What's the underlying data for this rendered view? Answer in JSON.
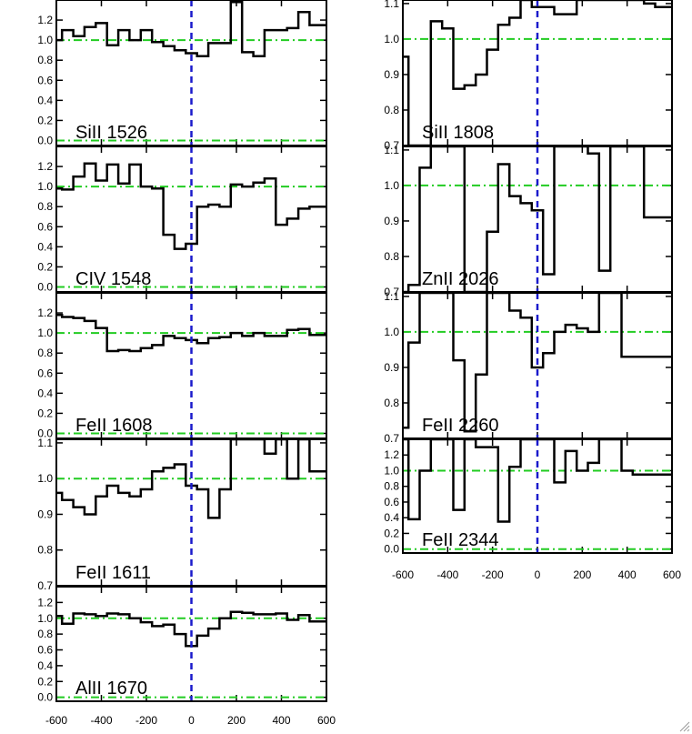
{
  "chart_data": [
    {
      "type": "line",
      "label": "SiII 1526",
      "xlim": [
        -600,
        600
      ],
      "ylim": [
        -0.05,
        1.4
      ],
      "yticks": [
        "0.0",
        "0.2",
        "0.4",
        "0.6",
        "0.8",
        "1.0",
        "1.2"
      ],
      "x": [
        -600,
        -550,
        -500,
        -450,
        -400,
        -350,
        -300,
        -250,
        -200,
        -150,
        -100,
        -50,
        0,
        50,
        100,
        150,
        200,
        250,
        300,
        350,
        400,
        450,
        500,
        550,
        600
      ],
      "y": [
        1.0,
        1.1,
        1.04,
        1.13,
        1.17,
        0.95,
        1.1,
        1.0,
        1.1,
        0.98,
        0.94,
        0.9,
        0.87,
        0.84,
        0.97,
        0.97,
        1.38,
        0.88,
        0.84,
        1.1,
        1.1,
        1.12,
        1.28,
        1.15,
        1.15
      ],
      "reference_y": 1.0
    },
    {
      "type": "line",
      "label": "CIV 1548",
      "xlim": [
        -600,
        600
      ],
      "ylim": [
        -0.05,
        1.4
      ],
      "yticks": [
        "0.0",
        "0.2",
        "0.4",
        "0.6",
        "0.8",
        "1.0",
        "1.2"
      ],
      "x": [
        -600,
        -550,
        -500,
        -450,
        -400,
        -350,
        -300,
        -250,
        -200,
        -150,
        -100,
        -50,
        0,
        50,
        100,
        150,
        200,
        250,
        300,
        350,
        400,
        450,
        500,
        550,
        600
      ],
      "y": [
        0.98,
        0.97,
        1.1,
        1.23,
        1.06,
        1.22,
        1.03,
        1.22,
        1.0,
        0.98,
        0.52,
        0.38,
        0.43,
        0.8,
        0.82,
        0.8,
        1.02,
        1.0,
        1.04,
        1.08,
        0.62,
        0.68,
        0.78,
        0.8,
        0.8
      ],
      "reference_y": 1.0
    },
    {
      "type": "line",
      "label": "FeII 1608",
      "xlim": [
        -600,
        600
      ],
      "ylim": [
        -0.05,
        1.4
      ],
      "yticks": [
        "0.0",
        "0.2",
        "0.4",
        "0.6",
        "0.8",
        "1.0",
        "1.2"
      ],
      "x": [
        -600,
        -550,
        -500,
        -450,
        -400,
        -350,
        -300,
        -250,
        -200,
        -150,
        -100,
        -50,
        0,
        50,
        100,
        150,
        200,
        250,
        300,
        350,
        400,
        450,
        500,
        550,
        600
      ],
      "y": [
        1.18,
        1.16,
        1.15,
        1.12,
        1.05,
        0.82,
        0.83,
        0.82,
        0.85,
        0.88,
        0.97,
        0.95,
        0.93,
        0.9,
        0.95,
        0.96,
        1.0,
        0.97,
        1.0,
        0.97,
        0.97,
        1.03,
        1.04,
        0.98,
        0.98
      ],
      "reference_y": 1.0
    },
    {
      "type": "line",
      "label": "FeII 1611",
      "xlim": [
        -600,
        600
      ],
      "ylim": [
        0.7,
        1.11
      ],
      "yticks": [
        "0.7",
        "0.8",
        "0.9",
        "1.0",
        "1.1"
      ],
      "x": [
        -600,
        -550,
        -500,
        -450,
        -400,
        -350,
        -300,
        -250,
        -200,
        -150,
        -100,
        -50,
        0,
        50,
        100,
        150,
        200,
        250,
        300,
        350,
        400,
        450,
        500,
        550,
        600
      ],
      "y": [
        0.96,
        0.94,
        0.92,
        0.9,
        0.95,
        0.98,
        0.96,
        0.95,
        0.97,
        1.02,
        1.03,
        1.04,
        0.98,
        0.97,
        0.89,
        0.97,
        1.11,
        1.11,
        1.11,
        1.07,
        1.11,
        1.0,
        1.11,
        1.02,
        1.02
      ],
      "reference_y": 1.0
    },
    {
      "type": "line",
      "label": "AlII 1670",
      "xlim": [
        -600,
        600
      ],
      "ylim": [
        -0.05,
        1.4
      ],
      "yticks": [
        "0.0",
        "0.2",
        "0.4",
        "0.6",
        "0.8",
        "1.0",
        "1.2"
      ],
      "x": [
        -600,
        -550,
        -500,
        -450,
        -400,
        -350,
        -300,
        -250,
        -200,
        -150,
        -100,
        -50,
        0,
        50,
        100,
        150,
        200,
        250,
        300,
        350,
        400,
        450,
        500,
        550,
        600
      ],
      "y": [
        1.03,
        0.93,
        1.06,
        1.05,
        1.03,
        1.06,
        1.05,
        1.0,
        0.95,
        0.9,
        0.92,
        0.8,
        0.65,
        0.78,
        0.87,
        1.0,
        1.08,
        1.07,
        1.05,
        1.05,
        1.06,
        0.98,
        1.04,
        0.96,
        0.96
      ],
      "reference_y": 1.0
    },
    {
      "type": "line",
      "label": "SiII 1808",
      "xlim": [
        -600,
        600
      ],
      "ylim": [
        0.7,
        1.11
      ],
      "yticks": [
        "0.7",
        "0.8",
        "0.9",
        "1.0",
        "1.1"
      ],
      "x": [
        -600,
        -550,
        -500,
        -450,
        -400,
        -350,
        -300,
        -250,
        -200,
        -150,
        -100,
        -50,
        0,
        50,
        100,
        150,
        200,
        250,
        300,
        350,
        400,
        450,
        500,
        550,
        600
      ],
      "y": [
        0.95,
        0.7,
        0.7,
        1.05,
        1.03,
        0.86,
        0.87,
        0.9,
        0.97,
        1.04,
        1.06,
        1.11,
        1.09,
        1.09,
        1.07,
        1.07,
        1.11,
        1.11,
        1.11,
        1.11,
        1.11,
        1.11,
        1.1,
        1.09,
        1.09
      ],
      "reference_y": 1.0
    },
    {
      "type": "line",
      "label": "ZnII 2026",
      "xlim": [
        -600,
        600
      ],
      "ylim": [
        0.7,
        1.11
      ],
      "yticks": [
        "0.7",
        "0.8",
        "0.9",
        "1.0",
        "1.1"
      ],
      "x": [
        -600,
        -550,
        -500,
        -450,
        -400,
        -350,
        -300,
        -250,
        -200,
        -150,
        -100,
        -50,
        0,
        50,
        100,
        150,
        200,
        250,
        300,
        350,
        400,
        450,
        500,
        550,
        600
      ],
      "y": [
        0.7,
        0.72,
        1.05,
        1.11,
        1.11,
        1.11,
        0.7,
        0.7,
        0.87,
        1.06,
        0.97,
        0.95,
        0.93,
        0.75,
        1.11,
        1.11,
        1.11,
        1.09,
        0.76,
        1.11,
        1.11,
        1.11,
        0.91,
        0.91,
        0.91
      ],
      "reference_y": 1.0
    },
    {
      "type": "line",
      "label": "FeII 2260",
      "xlim": [
        -600,
        600
      ],
      "ylim": [
        0.7,
        1.11
      ],
      "yticks": [
        "0.7",
        "0.8",
        "0.9",
        "1.0",
        "1.1"
      ],
      "x": [
        -600,
        -550,
        -500,
        -450,
        -400,
        -350,
        -300,
        -250,
        -200,
        -150,
        -100,
        -50,
        0,
        50,
        100,
        150,
        200,
        250,
        300,
        350,
        400,
        450,
        500,
        550,
        600
      ],
      "y": [
        0.73,
        0.97,
        1.11,
        1.11,
        1.11,
        0.92,
        0.72,
        0.88,
        1.11,
        1.11,
        1.06,
        1.04,
        0.9,
        0.94,
        1.0,
        1.02,
        1.01,
        1.0,
        1.11,
        1.11,
        0.93,
        0.93,
        0.93,
        0.93,
        0.93
      ],
      "reference_y": 1.0
    },
    {
      "type": "line",
      "label": "FeII 2344",
      "xlim": [
        -600,
        600
      ],
      "ylim": [
        -0.05,
        1.4
      ],
      "yticks": [
        "0.0",
        "0.2",
        "0.4",
        "0.6",
        "0.8",
        "1.0",
        "1.2"
      ],
      "x": [
        -600,
        -550,
        -500,
        -450,
        -400,
        -350,
        -300,
        -250,
        -200,
        -150,
        -100,
        -50,
        0,
        50,
        100,
        150,
        200,
        250,
        300,
        350,
        400,
        450,
        500,
        550,
        600
      ],
      "y": [
        1.4,
        0.38,
        1.0,
        1.4,
        1.4,
        0.5,
        1.4,
        1.3,
        1.3,
        0.35,
        1.05,
        1.4,
        1.4,
        1.4,
        0.85,
        1.25,
        1.0,
        1.1,
        1.4,
        1.4,
        1.0,
        0.95,
        0.95,
        0.95,
        0.95
      ],
      "reference_y": 1.0
    }
  ],
  "xaxis": {
    "ticks": [
      -600,
      -400,
      -200,
      0,
      200,
      400,
      600
    ],
    "tick_labels": [
      "-600",
      "-400",
      "-200",
      "0",
      "200",
      "400",
      "600"
    ]
  },
  "colors": {
    "spectrum": "#000000",
    "reference_line": "#22cc22",
    "zero_velocity_line": "#1a1acc"
  }
}
